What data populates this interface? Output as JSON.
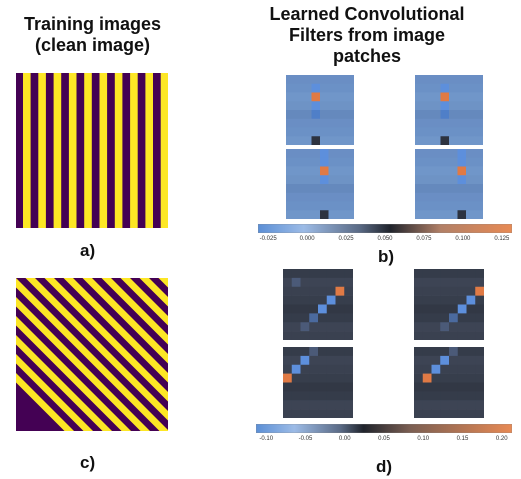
{
  "titles": {
    "left": "Training images\n(clean image)",
    "right": "Learned Convolutional\nFilters from image\npatches"
  },
  "labels": {
    "a": "a)",
    "b": "b)",
    "c": "c)",
    "d": "d)"
  },
  "patterns": {
    "vertical_stripes": {
      "colors": [
        "#440154",
        "#fde725"
      ],
      "orientation": "vertical"
    },
    "diagonal_stripes": {
      "colors": [
        "#440154",
        "#fde725"
      ],
      "orientation": "diagonal"
    }
  },
  "colorbars": {
    "b": {
      "ticks": [
        "-0.025",
        "0.000",
        "0.025",
        "0.050",
        "0.075",
        "0.100",
        "0.125"
      ]
    },
    "d": {
      "ticks": [
        "-0.10",
        "-0.05",
        "0.00",
        "0.05",
        "0.10",
        "0.15",
        "0.20"
      ]
    }
  },
  "colormap": [
    "#5b8fd6",
    "#2a2f3a",
    "#e88a54"
  ]
}
